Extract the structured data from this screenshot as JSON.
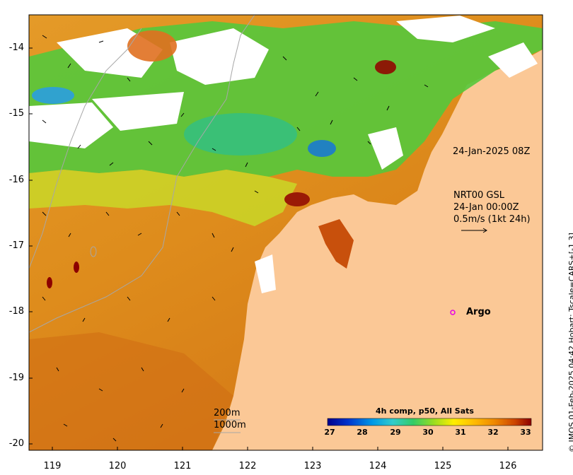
{
  "map": {
    "y_ticks": [
      "-14",
      "-15",
      "-16",
      "-17",
      "-18",
      "-19",
      "-20"
    ],
    "x_ticks": [
      "119",
      "120",
      "121",
      "122",
      "123",
      "124",
      "125",
      "126"
    ],
    "date_label": "24-Jan-2025 08Z",
    "current_title": "NRT00 GSL",
    "current_date": "24-Jan 00:00Z",
    "current_scale": "0.5m/s (1kt 24h)",
    "argo_label": "Argo",
    "depth_200": "200m",
    "depth_1000": "1000m",
    "colorbar_title": "4h comp, p50, All Sats",
    "colorbar_ticks": [
      "27",
      "28",
      "29",
      "30",
      "31",
      "32",
      "33"
    ],
    "credit": "© IMOS 01-Feb-2025 04:42 Hobart; Tscale=CARS+[-1 3]"
  },
  "colors": {
    "land": "#fbc896",
    "argo_marker": "#e600e6",
    "colorbar": [
      "#00008c",
      "#0033cc",
      "#0099e6",
      "#33cccc",
      "#33cc66",
      "#99dd22",
      "#ffee00",
      "#ffbb00",
      "#ee8800",
      "#cc4400",
      "#8c0000"
    ]
  }
}
